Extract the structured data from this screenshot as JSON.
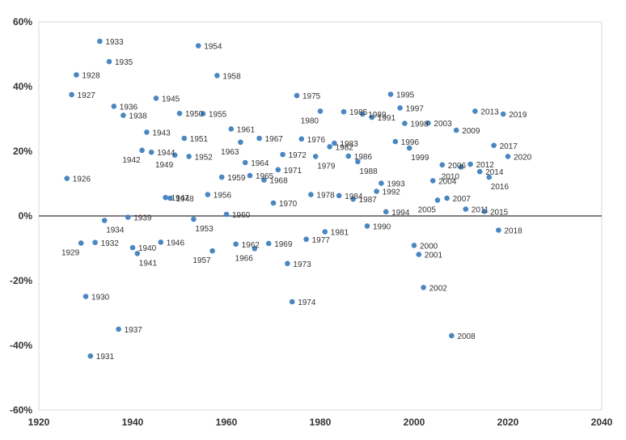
{
  "chart_data": {
    "type": "scatter",
    "title": "",
    "xlabel": "",
    "ylabel": "",
    "xlim": [
      1920,
      2040
    ],
    "ylim": [
      -60,
      60
    ],
    "x_ticks": [
      "1920",
      "1940",
      "1960",
      "1980",
      "2000",
      "2020",
      "2040"
    ],
    "y_ticks": [
      "60%",
      "40%",
      "20%",
      "0%",
      "-20%",
      "-40%",
      "-60%"
    ],
    "grid": false,
    "legend": "none",
    "zero_line": true,
    "point_color": "#4a86c1",
    "points": [
      {
        "year": 1926,
        "value": 11.6,
        "label": "1926"
      },
      {
        "year": 1927,
        "value": 37.5,
        "label": "1927"
      },
      {
        "year": 1928,
        "value": 43.6,
        "label": "1928"
      },
      {
        "year": 1929,
        "value": -8.4,
        "label": "1929"
      },
      {
        "year": 1930,
        "value": -24.9,
        "label": "1930"
      },
      {
        "year": 1931,
        "value": -43.3,
        "label": "1931"
      },
      {
        "year": 1932,
        "value": -8.2,
        "label": "1932"
      },
      {
        "year": 1933,
        "value": 54.0,
        "label": "1933"
      },
      {
        "year": 1934,
        "value": -1.4,
        "label": "1934"
      },
      {
        "year": 1935,
        "value": 47.7,
        "label": "1935"
      },
      {
        "year": 1936,
        "value": 33.9,
        "label": "1936"
      },
      {
        "year": 1937,
        "value": -35.0,
        "label": "1937"
      },
      {
        "year": 1938,
        "value": 31.1,
        "label": "1938"
      },
      {
        "year": 1939,
        "value": -0.4,
        "label": "1939"
      },
      {
        "year": 1940,
        "value": -9.8,
        "label": "1940"
      },
      {
        "year": 1941,
        "value": -11.6,
        "label": "1941"
      },
      {
        "year": 1942,
        "value": 20.3,
        "label": "1942"
      },
      {
        "year": 1943,
        "value": 25.9,
        "label": "1943"
      },
      {
        "year": 1944,
        "value": 19.7,
        "label": "1944"
      },
      {
        "year": 1945,
        "value": 36.4,
        "label": "1945"
      },
      {
        "year": 1946,
        "value": -8.1,
        "label": "1946"
      },
      {
        "year": 1947,
        "value": 5.7,
        "label": "1947"
      },
      {
        "year": 1948,
        "value": 5.5,
        "label": "1948"
      },
      {
        "year": 1949,
        "value": 18.8,
        "label": "1949"
      },
      {
        "year": 1950,
        "value": 31.7,
        "label": "1950"
      },
      {
        "year": 1951,
        "value": 24.0,
        "label": "1951"
      },
      {
        "year": 1952,
        "value": 18.4,
        "label": "1952"
      },
      {
        "year": 1953,
        "value": -1.0,
        "label": "1953"
      },
      {
        "year": 1954,
        "value": 52.6,
        "label": "1954"
      },
      {
        "year": 1955,
        "value": 31.6,
        "label": "1955"
      },
      {
        "year": 1956,
        "value": 6.6,
        "label": "1956"
      },
      {
        "year": 1957,
        "value": -10.8,
        "label": "1957"
      },
      {
        "year": 1958,
        "value": 43.4,
        "label": "1958"
      },
      {
        "year": 1959,
        "value": 12.0,
        "label": "1959"
      },
      {
        "year": 1960,
        "value": 0.5,
        "label": "1960"
      },
      {
        "year": 1961,
        "value": 26.9,
        "label": "1961"
      },
      {
        "year": 1962,
        "value": -8.7,
        "label": "1962"
      },
      {
        "year": 1963,
        "value": 22.8,
        "label": "1963"
      },
      {
        "year": 1964,
        "value": 16.5,
        "label": "1964"
      },
      {
        "year": 1965,
        "value": 12.5,
        "label": "1965"
      },
      {
        "year": 1966,
        "value": -10.1,
        "label": "1966"
      },
      {
        "year": 1967,
        "value": 24.0,
        "label": "1967"
      },
      {
        "year": 1968,
        "value": 11.1,
        "label": "1968"
      },
      {
        "year": 1969,
        "value": -8.5,
        "label": "1969"
      },
      {
        "year": 1970,
        "value": 4.0,
        "label": "1970"
      },
      {
        "year": 1971,
        "value": 14.3,
        "label": "1971"
      },
      {
        "year": 1972,
        "value": 19.0,
        "label": "1972"
      },
      {
        "year": 1973,
        "value": -14.7,
        "label": "1973"
      },
      {
        "year": 1974,
        "value": -26.5,
        "label": "1974"
      },
      {
        "year": 1975,
        "value": 37.2,
        "label": "1975"
      },
      {
        "year": 1976,
        "value": 23.8,
        "label": "1976"
      },
      {
        "year": 1977,
        "value": -7.2,
        "label": "1977"
      },
      {
        "year": 1978,
        "value": 6.6,
        "label": "1978"
      },
      {
        "year": 1979,
        "value": 18.4,
        "label": "1979"
      },
      {
        "year": 1980,
        "value": 32.4,
        "label": "1980"
      },
      {
        "year": 1981,
        "value": -4.9,
        "label": "1981"
      },
      {
        "year": 1982,
        "value": 21.4,
        "label": "1982"
      },
      {
        "year": 1983,
        "value": 22.5,
        "label": "1983"
      },
      {
        "year": 1984,
        "value": 6.3,
        "label": "1984"
      },
      {
        "year": 1985,
        "value": 32.2,
        "label": "1985"
      },
      {
        "year": 1986,
        "value": 18.5,
        "label": "1986"
      },
      {
        "year": 1987,
        "value": 5.2,
        "label": "1987"
      },
      {
        "year": 1988,
        "value": 16.8,
        "label": "1988"
      },
      {
        "year": 1989,
        "value": 31.5,
        "label": "1989"
      },
      {
        "year": 1990,
        "value": -3.1,
        "label": "1990"
      },
      {
        "year": 1991,
        "value": 30.5,
        "label": "1991"
      },
      {
        "year": 1992,
        "value": 7.6,
        "label": "1992"
      },
      {
        "year": 1993,
        "value": 10.1,
        "label": "1993"
      },
      {
        "year": 1994,
        "value": 1.3,
        "label": "1994"
      },
      {
        "year": 1995,
        "value": 37.6,
        "label": "1995"
      },
      {
        "year": 1996,
        "value": 23.0,
        "label": "1996"
      },
      {
        "year": 1997,
        "value": 33.4,
        "label": "1997"
      },
      {
        "year": 1998,
        "value": 28.6,
        "label": "1998"
      },
      {
        "year": 1999,
        "value": 21.0,
        "label": "1999"
      },
      {
        "year": 2000,
        "value": -9.1,
        "label": "2000"
      },
      {
        "year": 2001,
        "value": -11.9,
        "label": "2001"
      },
      {
        "year": 2002,
        "value": -22.1,
        "label": "2002"
      },
      {
        "year": 2003,
        "value": 28.7,
        "label": "2003"
      },
      {
        "year": 2004,
        "value": 10.9,
        "label": "2004"
      },
      {
        "year": 2005,
        "value": 4.9,
        "label": "2005"
      },
      {
        "year": 2006,
        "value": 15.8,
        "label": "2006"
      },
      {
        "year": 2007,
        "value": 5.5,
        "label": "2007"
      },
      {
        "year": 2008,
        "value": -37.0,
        "label": "2008"
      },
      {
        "year": 2009,
        "value": 26.5,
        "label": "2009"
      },
      {
        "year": 2010,
        "value": 15.1,
        "label": "2010"
      },
      {
        "year": 2011,
        "value": 2.1,
        "label": "2011"
      },
      {
        "year": 2012,
        "value": 16.0,
        "label": "2012"
      },
      {
        "year": 2013,
        "value": 32.4,
        "label": "2013"
      },
      {
        "year": 2014,
        "value": 13.7,
        "label": "2014"
      },
      {
        "year": 2015,
        "value": 1.4,
        "label": "2015"
      },
      {
        "year": 2016,
        "value": 12.0,
        "label": "2016"
      },
      {
        "year": 2017,
        "value": 21.8,
        "label": "2017"
      },
      {
        "year": 2018,
        "value": -4.4,
        "label": "2018"
      },
      {
        "year": 2019,
        "value": 31.5,
        "label": "2019"
      },
      {
        "year": 2020,
        "value": 18.4,
        "label": "2020"
      }
    ]
  }
}
